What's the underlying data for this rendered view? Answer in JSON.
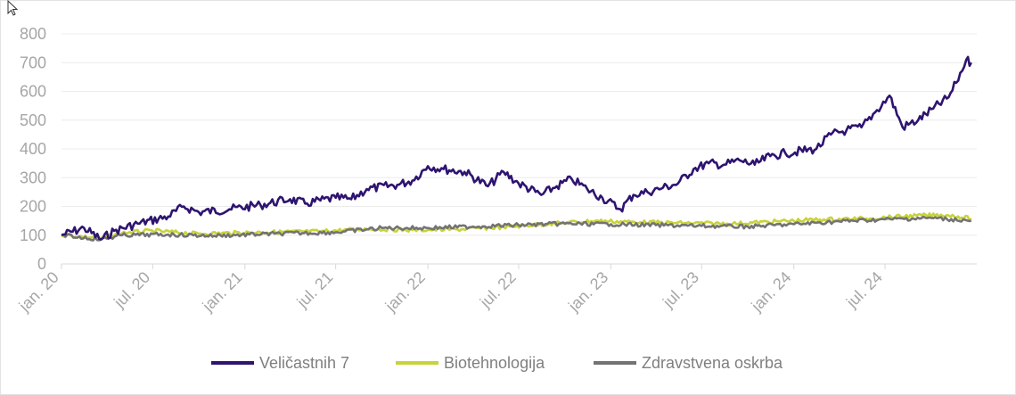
{
  "chart_data": {
    "type": "line",
    "title": "",
    "xlabel": "",
    "ylabel": "",
    "ylim": [
      0,
      800
    ],
    "yticks": [
      0,
      100,
      200,
      300,
      400,
      500,
      600,
      700,
      800
    ],
    "ytick_labels": [
      "0",
      "100",
      "200",
      "300",
      "400",
      "500",
      "600",
      "700",
      "800"
    ],
    "xticks": [
      "2020-01-01",
      "2020-07-01",
      "2021-01-01",
      "2021-07-01",
      "2022-01-01",
      "2022-07-01",
      "2023-01-01",
      "2023-07-01",
      "2024-01-01",
      "2024-07-01"
    ],
    "xtick_labels": [
      "jan. 20",
      "jul. 20",
      "jan. 21",
      "jul. 21",
      "jan. 22",
      "jul. 22",
      "jan. 23",
      "jul. 23",
      "jan. 24",
      "jul. 24"
    ],
    "xlim": [
      "2020-01-01",
      "2024-12-31"
    ],
    "grid": "horizontal",
    "legend": "bottom",
    "series": [
      {
        "name": "Veličastnih 7",
        "color": "#2e1470",
        "points": [
          [
            "2020-01-01",
            100
          ],
          [
            "2020-02-15",
            125
          ],
          [
            "2020-03-20",
            85
          ],
          [
            "2020-04-15",
            115
          ],
          [
            "2020-06-01",
            140
          ],
          [
            "2020-08-01",
            165
          ],
          [
            "2020-09-01",
            200
          ],
          [
            "2020-10-01",
            180
          ],
          [
            "2020-12-01",
            190
          ],
          [
            "2021-02-01",
            205
          ],
          [
            "2021-04-01",
            225
          ],
          [
            "2021-05-01",
            210
          ],
          [
            "2021-07-01",
            230
          ],
          [
            "2021-08-01",
            225
          ],
          [
            "2021-09-01",
            260
          ],
          [
            "2021-11-01",
            275
          ],
          [
            "2021-12-01",
            290
          ],
          [
            "2022-01-01",
            340
          ],
          [
            "2022-02-01",
            330
          ],
          [
            "2022-03-15",
            320
          ],
          [
            "2022-05-01",
            270
          ],
          [
            "2022-06-01",
            320
          ],
          [
            "2022-07-01",
            280
          ],
          [
            "2022-08-15",
            240
          ],
          [
            "2022-09-15",
            270
          ],
          [
            "2022-10-15",
            295
          ],
          [
            "2022-11-15",
            260
          ],
          [
            "2022-12-15",
            230
          ],
          [
            "2023-01-20",
            190
          ],
          [
            "2023-02-15",
            240
          ],
          [
            "2023-03-15",
            250
          ],
          [
            "2023-04-15",
            265
          ],
          [
            "2023-05-15",
            280
          ],
          [
            "2023-06-15",
            330
          ],
          [
            "2023-07-15",
            350
          ],
          [
            "2023-08-15",
            345
          ],
          [
            "2023-09-15",
            360
          ],
          [
            "2023-10-15",
            345
          ],
          [
            "2023-11-15",
            375
          ],
          [
            "2023-12-15",
            385
          ],
          [
            "2024-02-15",
            400
          ],
          [
            "2024-03-15",
            450
          ],
          [
            "2024-04-15",
            465
          ],
          [
            "2024-05-15",
            475
          ],
          [
            "2024-06-15",
            535
          ],
          [
            "2024-07-10",
            585
          ],
          [
            "2024-08-05",
            475
          ],
          [
            "2024-09-05",
            500
          ],
          [
            "2024-10-05",
            540
          ],
          [
            "2024-11-05",
            580
          ],
          [
            "2024-11-20",
            630
          ],
          [
            "2024-12-10",
            710
          ],
          [
            "2024-12-20",
            700
          ]
        ]
      },
      {
        "name": "Biotehnologija",
        "color": "#c8d33a",
        "points": [
          [
            "2020-01-01",
            100
          ],
          [
            "2020-03-20",
            90
          ],
          [
            "2020-05-01",
            108
          ],
          [
            "2020-07-01",
            115
          ],
          [
            "2020-10-01",
            105
          ],
          [
            "2021-02-01",
            110
          ],
          [
            "2021-06-01",
            113
          ],
          [
            "2021-09-01",
            122
          ],
          [
            "2021-12-01",
            118
          ],
          [
            "2022-03-01",
            120
          ],
          [
            "2022-06-01",
            128
          ],
          [
            "2022-09-01",
            140
          ],
          [
            "2022-12-01",
            150
          ],
          [
            "2023-03-01",
            145
          ],
          [
            "2023-06-01",
            142
          ],
          [
            "2023-09-01",
            140
          ],
          [
            "2023-12-01",
            148
          ],
          [
            "2024-03-01",
            155
          ],
          [
            "2024-06-01",
            158
          ],
          [
            "2024-09-01",
            168
          ],
          [
            "2024-11-01",
            170
          ],
          [
            "2024-12-20",
            158
          ]
        ]
      },
      {
        "name": "Zdravstvena oskrba",
        "color": "#737373",
        "points": [
          [
            "2020-01-01",
            100
          ],
          [
            "2020-03-20",
            85
          ],
          [
            "2020-05-01",
            100
          ],
          [
            "2020-08-01",
            102
          ],
          [
            "2020-11-01",
            98
          ],
          [
            "2021-03-01",
            105
          ],
          [
            "2021-07-01",
            110
          ],
          [
            "2021-10-01",
            125
          ],
          [
            "2022-01-01",
            125
          ],
          [
            "2022-04-01",
            130
          ],
          [
            "2022-07-01",
            135
          ],
          [
            "2022-10-01",
            140
          ],
          [
            "2023-01-01",
            138
          ],
          [
            "2023-04-01",
            135
          ],
          [
            "2023-07-01",
            132
          ],
          [
            "2023-10-01",
            130
          ],
          [
            "2024-01-01",
            138
          ],
          [
            "2024-04-01",
            148
          ],
          [
            "2024-07-01",
            155
          ],
          [
            "2024-10-01",
            160
          ],
          [
            "2024-12-20",
            150
          ]
        ]
      }
    ]
  }
}
